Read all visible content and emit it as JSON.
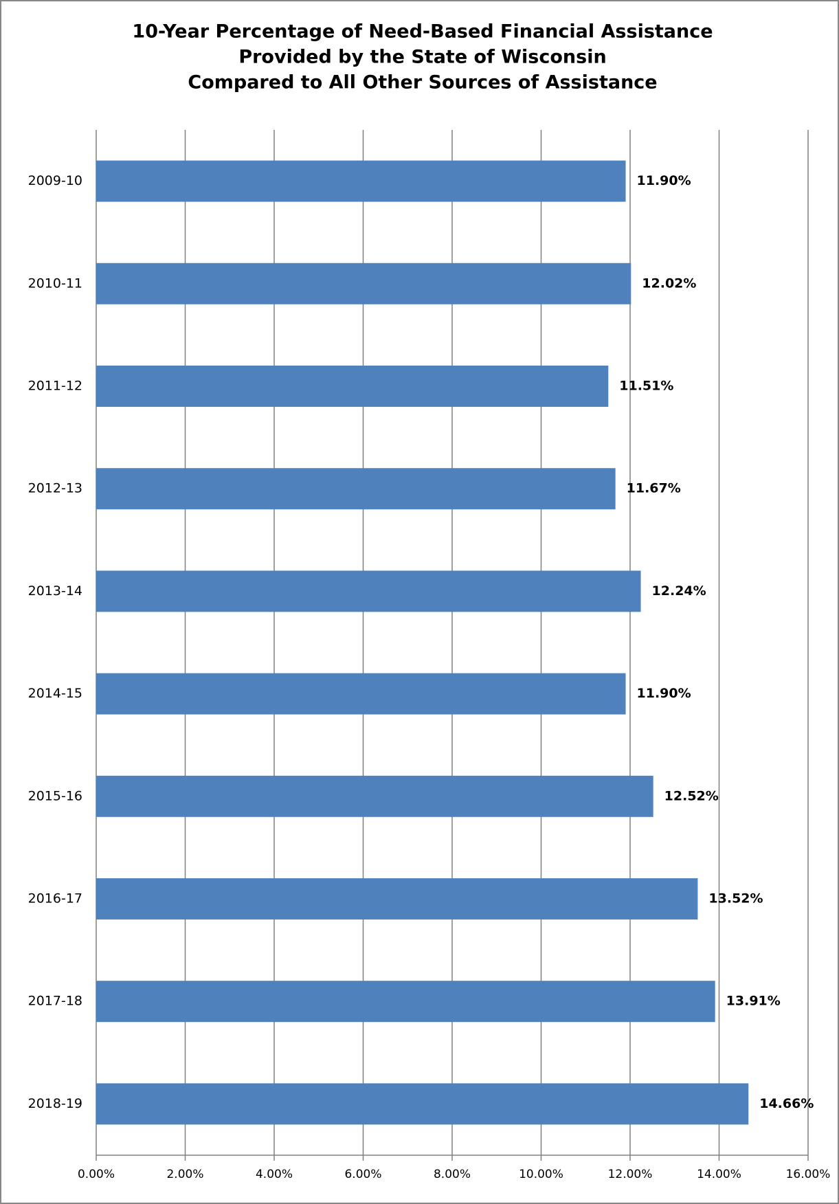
{
  "chart_data": {
    "type": "bar",
    "orientation": "horizontal",
    "title": [
      "10-Year Percentage of Need-Based Financial Assistance",
      "Provided by the State of Wisconsin",
      "Compared to All Other Sources of Assistance"
    ],
    "categories": [
      "2009-10",
      "2010-11",
      "2011-12",
      "2012-13",
      "2013-14",
      "2014-15",
      "2015-16",
      "2016-17",
      "2017-18",
      "2018-19"
    ],
    "values": [
      11.9,
      12.02,
      11.51,
      11.67,
      12.24,
      11.9,
      12.52,
      13.52,
      13.91,
      14.66
    ],
    "value_labels": [
      "11.90%",
      "12.02%",
      "11.51%",
      "11.67%",
      "12.24%",
      "11.90%",
      "12.52%",
      "13.52%",
      "13.91%",
      "14.66%"
    ],
    "color": "#4f81bd",
    "xlim": [
      0,
      16
    ],
    "xticks": [
      {
        "value": 0,
        "label": "0.00%"
      },
      {
        "value": 2,
        "label": "2.00%"
      },
      {
        "value": 4,
        "label": "4.00%"
      },
      {
        "value": 6,
        "label": "6.00%"
      },
      {
        "value": 8,
        "label": "8.00%"
      },
      {
        "value": 10,
        "label": "10.00%"
      },
      {
        "value": 12,
        "label": "12.00%"
      },
      {
        "value": 14,
        "label": "14.00%"
      },
      {
        "value": 16,
        "label": "16.00%"
      }
    ],
    "grid": true
  }
}
